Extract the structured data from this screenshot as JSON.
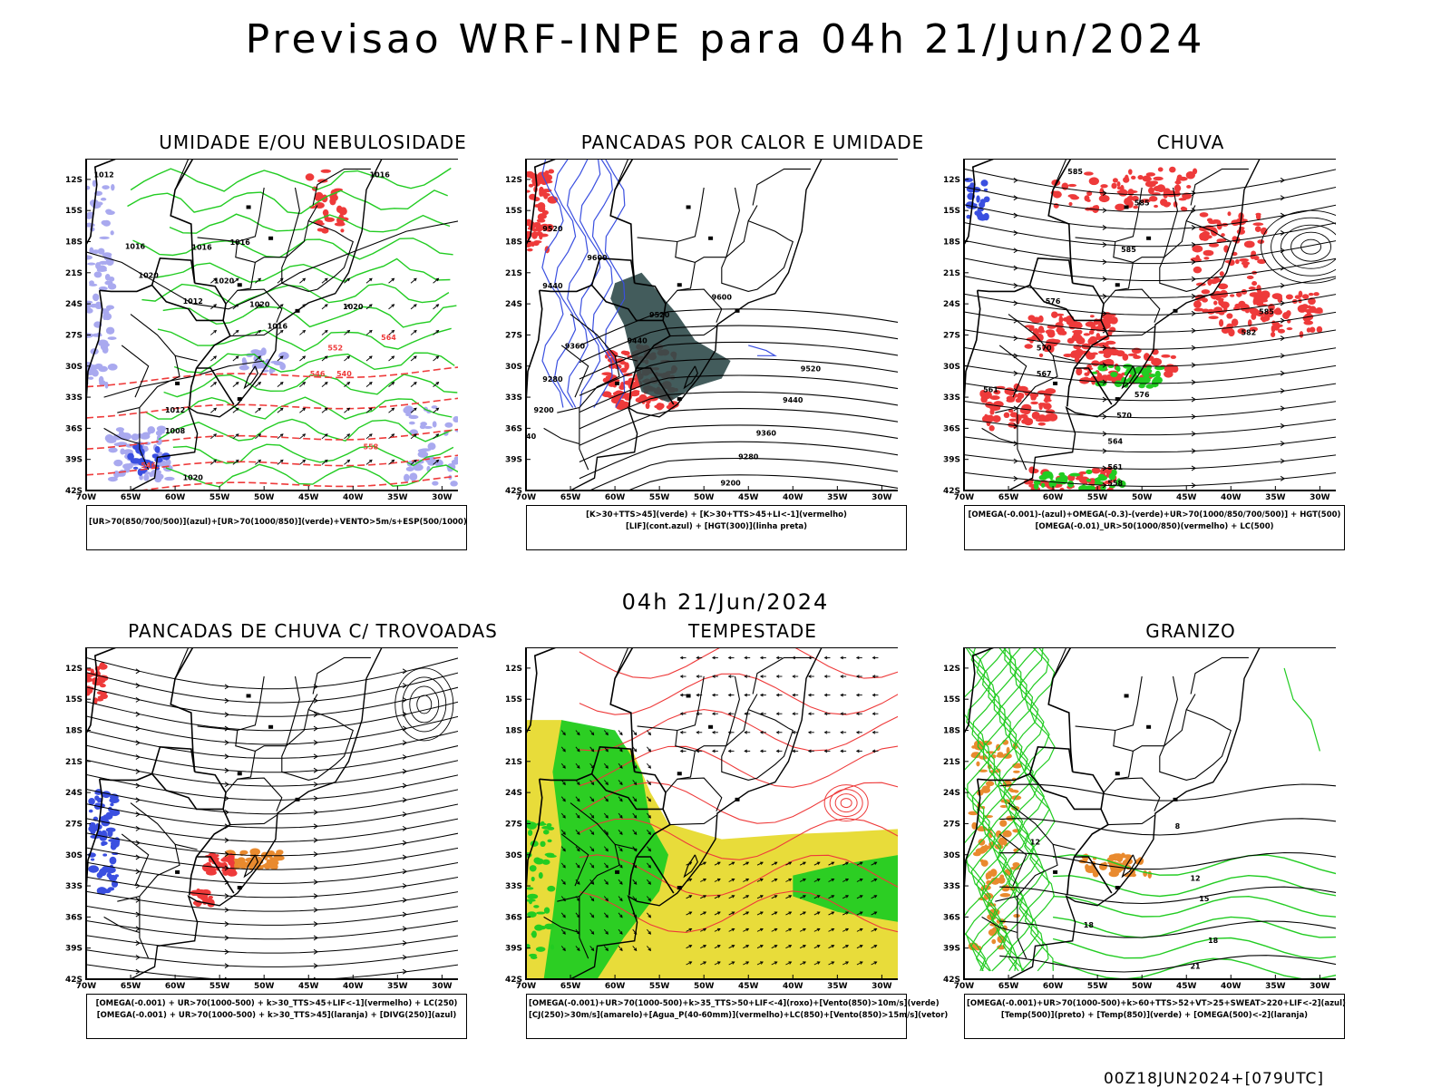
{
  "title": "Previsao WRF-INPE  para 04h 21/Jun/2024",
  "middle_date": "04h 21/Jun/2024",
  "footer": "00Z18JUN2024+[079UTC]",
  "axes": {
    "lat_ticks": [
      "12S",
      "15S",
      "18S",
      "21S",
      "24S",
      "27S",
      "30S",
      "33S",
      "36S",
      "39S",
      "42S"
    ],
    "lon_ticks": [
      "70W",
      "65W",
      "60W",
      "55W",
      "50W",
      "45W",
      "40W",
      "35W",
      "30W"
    ]
  },
  "colors": {
    "blue": "#3a4fe0",
    "lavender": "#a9a9ef",
    "green": "#22cc22",
    "red": "#ee3a3a",
    "orange": "#e98a2e",
    "yellow": "#e8dc3a",
    "dark_teal": "#2f4a4a"
  },
  "panels": [
    {
      "id": "umidade",
      "title": "UMIDADE E/OU NEBULOSIDADE",
      "legend": [
        "[UR>70(850/700/500)](azul)+[UR>70(1000/850)](verde)+VENTO>5m/s+ESP(500/1000)"
      ],
      "contour_labels": [
        "1012",
        "1016",
        "1016",
        "1016",
        "1020",
        "1020",
        "1016",
        "1012",
        "1020",
        "1016",
        "1020",
        "1012",
        "1008",
        "1020",
        "564",
        "552",
        "546",
        "546",
        "540",
        "558"
      ]
    },
    {
      "id": "pancadas-calor",
      "title": "PANCADAS POR CALOR E UMIDADE",
      "legend": [
        "[K>30+TTS>45](verde)  +  [K>30+TTS>45+LI<-1](vermelho)",
        "[LIF](cont.azul)  +  [HGT(300)](linha preta)"
      ],
      "contour_labels": [
        "9520",
        "9600",
        "9440",
        "9520",
        "9600",
        "9360",
        "9440",
        "9280",
        "9200",
        "9520",
        "9440",
        "9360",
        "9280",
        "9200",
        "9040"
      ]
    },
    {
      "id": "chuva",
      "title": "CHUVA",
      "legend": [
        "[OMEGA(-0.001)-(azul)+OMEGA(-0.3)-(verde)+UR>70(1000/850/700/500)]  +  HGT(500)",
        "[OMEGA(-0.01)_UR>50(1000/850)(vermelho)  +  LC(500)"
      ],
      "contour_labels": [
        "585",
        "585",
        "585",
        "576",
        "582",
        "585",
        "570",
        "567",
        "561",
        "576",
        "570",
        "564",
        "561",
        "558"
      ]
    },
    {
      "id": "pancadas-trovoadas",
      "title": "PANCADAS DE CHUVA C/ TROVOADAS",
      "legend": [
        "[OMEGA(-0.001)  +  UR>70(1000-500)  +  k>30_TTS>45+LIF<-1](vermelho)  +  LC(250)",
        "[OMEGA(-0.001)  +  UR>70(1000-500)  +  k>30_TTS>45](laranja)  +  [DIVG(250)](azul)"
      ],
      "contour_labels": []
    },
    {
      "id": "tempestade",
      "title": "TEMPESTADE",
      "legend": [
        "[OMEGA(-0.001)+UR>70(1000-500)+k>35_TTS>50+LIF<-4](roxo)+[Vento(850)>10m/s](verde)",
        "[CJ(250)>30m/s](amarelo)+[Agua_P(40-60mm)](vermelho)+LC(850)+[Vento(850)>15m/s](vetor)"
      ],
      "contour_labels": []
    },
    {
      "id": "granizo",
      "title": "GRANIZO",
      "legend": [
        "[OMEGA(-0.001)+UR>70(1000-500)+k>60+TTS>52+VT>25+SWEAT>220+LIF<-2](azul)",
        "[Temp(500)](preto)  +  [Temp(850)](verde)  +  [OMEGA(500)<-2](laranja)"
      ],
      "contour_labels": [
        "12",
        "8",
        "12",
        "15",
        "18",
        "18",
        "21"
      ]
    }
  ]
}
